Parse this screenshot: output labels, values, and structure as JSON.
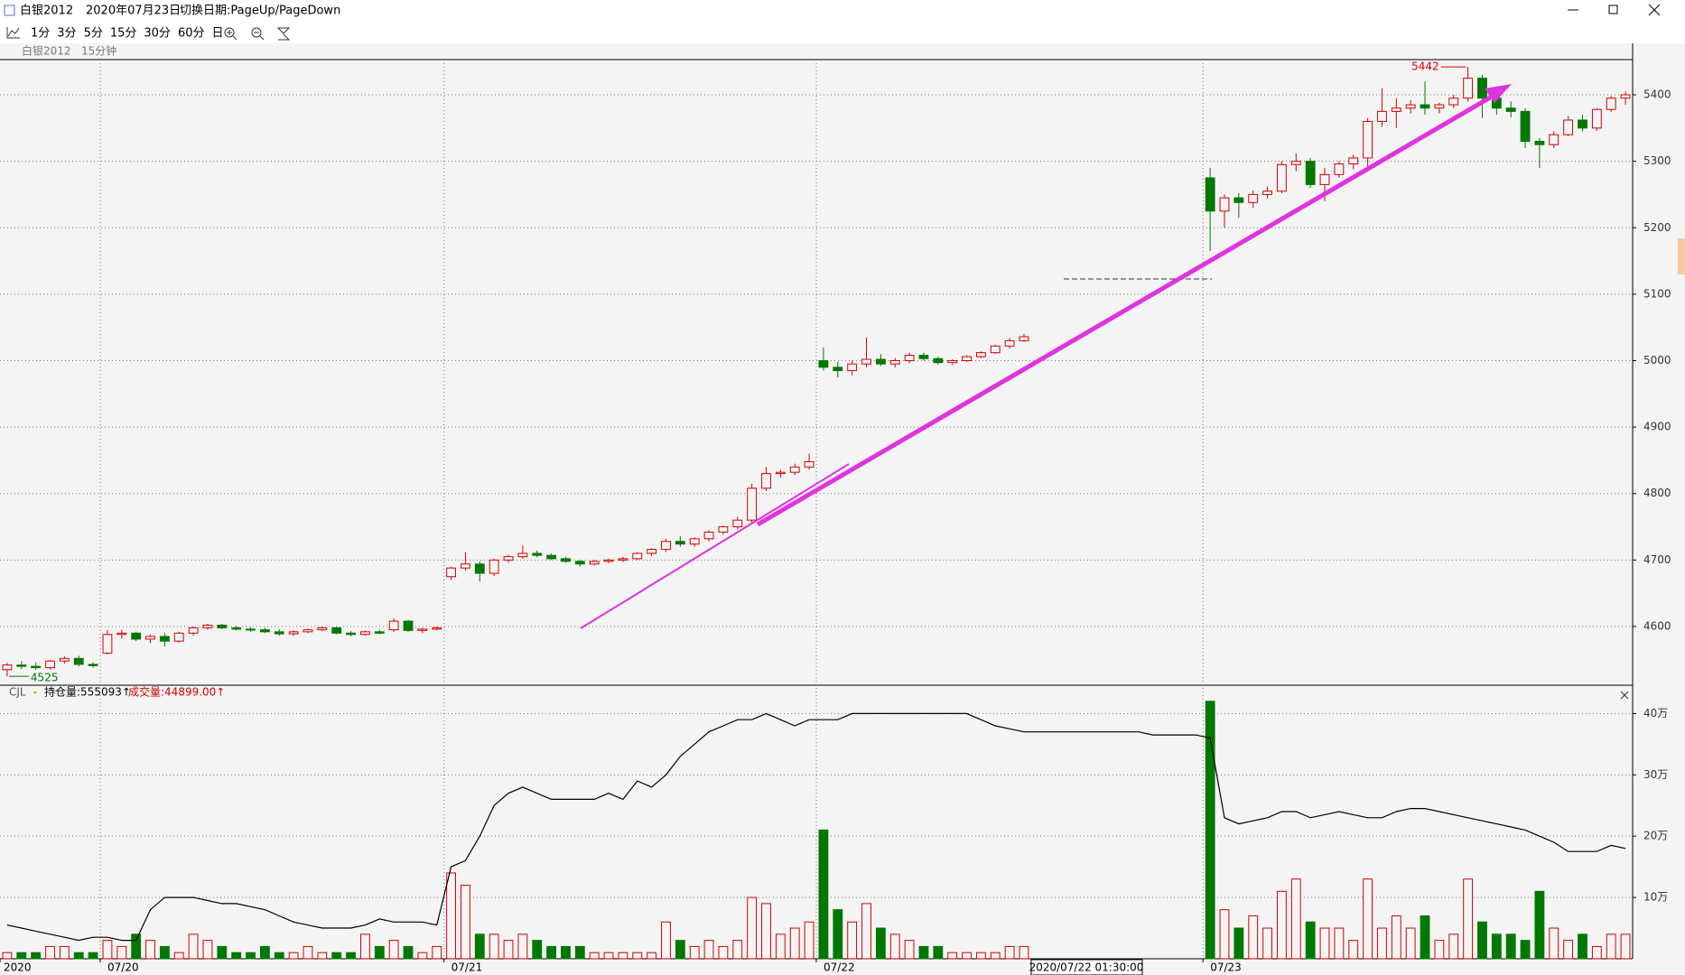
{
  "window": {
    "title": "白银2012",
    "date": "2020年07月23日",
    "hint": "切换日期:PageUp/PageDown"
  },
  "toolbar": {
    "periods": [
      "1分",
      "3分",
      "5分",
      "15分",
      "30分",
      "60分",
      "日"
    ]
  },
  "cursor_label": "2020/07/22 01:30:00",
  "chart_data": [
    {
      "type": "candlestick",
      "symbol": "白银2012",
      "period": "15分钟",
      "up_color": "#d40000",
      "down_color": "#007800",
      "high": 5442,
      "low": 4525,
      "ylim": [
        4513,
        5453
      ],
      "yticks": [
        4600,
        4700,
        4800,
        4900,
        5000,
        5100,
        5200,
        5300,
        5400
      ],
      "grid": true,
      "xticks": [
        {
          "value": 0,
          "label": "2020"
        },
        {
          "value": 7,
          "label": "07/20"
        },
        {
          "value": 31,
          "label": "07/21"
        },
        {
          "value": 57,
          "label": "07/22"
        },
        {
          "value": 84,
          "label": "07/23"
        }
      ],
      "ohlc": [
        [
          4535,
          4545,
          4525,
          4542
        ],
        [
          4542,
          4548,
          4536,
          4540
        ],
        [
          4540,
          4546,
          4535,
          4538
        ],
        [
          4538,
          4550,
          4535,
          4548
        ],
        [
          4548,
          4555,
          4544,
          4552
        ],
        [
          4552,
          4556,
          4540,
          4543
        ],
        [
          4543,
          4546,
          4538,
          4541
        ],
        [
          4560,
          4595,
          4558,
          4588
        ],
        [
          4588,
          4595,
          4582,
          4590
        ],
        [
          4590,
          4592,
          4578,
          4581
        ],
        [
          4581,
          4588,
          4575,
          4585
        ],
        [
          4585,
          4590,
          4570,
          4578
        ],
        [
          4578,
          4592,
          4576,
          4590
        ],
        [
          4590,
          4600,
          4586,
          4598
        ],
        [
          4598,
          4604,
          4595,
          4602
        ],
        [
          4602,
          4604,
          4596,
          4598
        ],
        [
          4598,
          4601,
          4594,
          4596
        ],
        [
          4596,
          4599,
          4592,
          4595
        ],
        [
          4595,
          4598,
          4590,
          4592
        ],
        [
          4592,
          4596,
          4586,
          4589
        ],
        [
          4589,
          4594,
          4586,
          4592
        ],
        [
          4592,
          4597,
          4590,
          4595
        ],
        [
          4595,
          4600,
          4593,
          4598
        ],
        [
          4598,
          4600,
          4588,
          4590
        ],
        [
          4590,
          4593,
          4585,
          4588
        ],
        [
          4588,
          4594,
          4586,
          4592
        ],
        [
          4592,
          4595,
          4588,
          4590
        ],
        [
          4595,
          4612,
          4592,
          4608
        ],
        [
          4608,
          4610,
          4592,
          4594
        ],
        [
          4594,
          4598,
          4590,
          4596
        ],
        [
          4596,
          4600,
          4594,
          4598
        ],
        [
          4675,
          4690,
          4670,
          4688
        ],
        [
          4688,
          4712,
          4684,
          4694
        ],
        [
          4694,
          4698,
          4668,
          4680
        ],
        [
          4680,
          4702,
          4676,
          4700
        ],
        [
          4700,
          4708,
          4696,
          4705
        ],
        [
          4705,
          4722,
          4702,
          4710
        ],
        [
          4710,
          4714,
          4704,
          4707
        ],
        [
          4707,
          4710,
          4700,
          4702
        ],
        [
          4702,
          4705,
          4696,
          4698
        ],
        [
          4698,
          4700,
          4690,
          4694
        ],
        [
          4694,
          4700,
          4692,
          4698
        ],
        [
          4698,
          4702,
          4695,
          4700
        ],
        [
          4700,
          4705,
          4697,
          4702
        ],
        [
          4702,
          4712,
          4700,
          4710
        ],
        [
          4710,
          4718,
          4706,
          4716
        ],
        [
          4716,
          4732,
          4712,
          4728
        ],
        [
          4728,
          4736,
          4720,
          4724
        ],
        [
          4724,
          4734,
          4720,
          4732
        ],
        [
          4732,
          4745,
          4728,
          4742
        ],
        [
          4742,
          4752,
          4738,
          4750
        ],
        [
          4750,
          4765,
          4746,
          4760
        ],
        [
          4760,
          4815,
          4756,
          4808
        ],
        [
          4808,
          4840,
          4804,
          4830
        ],
        [
          4830,
          4836,
          4824,
          4832
        ],
        [
          4832,
          4845,
          4828,
          4840
        ],
        [
          4840,
          4860,
          4836,
          4848
        ],
        [
          5000,
          5020,
          4985,
          4990
        ],
        [
          4990,
          4998,
          4975,
          4985
        ],
        [
          4985,
          5000,
          4978,
          4995
        ],
        [
          4995,
          5035,
          4990,
          5002
        ],
        [
          5002,
          5010,
          4992,
          4995
        ],
        [
          4995,
          5004,
          4990,
          5000
        ],
        [
          5000,
          5012,
          4996,
          5008
        ],
        [
          5008,
          5012,
          5000,
          5003
        ],
        [
          5003,
          5006,
          4994,
          4997
        ],
        [
          4997,
          5002,
          4994,
          5000
        ],
        [
          5000,
          5008,
          4998,
          5006
        ],
        [
          5006,
          5014,
          5004,
          5012
        ],
        [
          5012,
          5024,
          5010,
          5022
        ],
        [
          5022,
          5034,
          5018,
          5030
        ],
        [
          5030,
          5040,
          5028,
          5036
        ],
        null,
        null,
        null,
        null,
        null,
        null,
        null,
        null,
        null,
        null,
        null,
        null,
        [
          5275,
          5290,
          5165,
          5225
        ],
        [
          5225,
          5250,
          5200,
          5245
        ],
        [
          5245,
          5252,
          5215,
          5238
        ],
        [
          5238,
          5256,
          5230,
          5250
        ],
        [
          5250,
          5262,
          5244,
          5255
        ],
        [
          5255,
          5300,
          5252,
          5295
        ],
        [
          5295,
          5312,
          5285,
          5300
        ],
        [
          5300,
          5305,
          5260,
          5265
        ],
        [
          5265,
          5290,
          5240,
          5280
        ],
        [
          5280,
          5300,
          5275,
          5296
        ],
        [
          5296,
          5310,
          5288,
          5305
        ],
        [
          5305,
          5365,
          5290,
          5360
        ],
        [
          5360,
          5410,
          5352,
          5375
        ],
        [
          5375,
          5395,
          5350,
          5380
        ],
        [
          5380,
          5392,
          5372,
          5385
        ],
        [
          5385,
          5420,
          5370,
          5380
        ],
        [
          5380,
          5388,
          5372,
          5385
        ],
        [
          5385,
          5400,
          5380,
          5395
        ],
        [
          5395,
          5442,
          5390,
          5425
        ],
        [
          5425,
          5430,
          5365,
          5395
        ],
        [
          5395,
          5400,
          5370,
          5380
        ],
        [
          5380,
          5390,
          5366,
          5375
        ],
        [
          5375,
          5380,
          5320,
          5330
        ],
        [
          5330,
          5335,
          5290,
          5325
        ],
        [
          5325,
          5345,
          5320,
          5340
        ],
        [
          5340,
          5368,
          5338,
          5362
        ],
        [
          5362,
          5370,
          5345,
          5350
        ],
        [
          5350,
          5380,
          5346,
          5378
        ],
        [
          5378,
          5398,
          5374,
          5395
        ],
        [
          5395,
          5405,
          5385,
          5400
        ]
      ]
    },
    {
      "type": "bar",
      "indicator": "CJL",
      "open_interest_label": "持仓量:555093↑",
      "volume_label": "成交量:44899.00↑",
      "line_color": "#000000",
      "ylim": [
        0,
        43
      ],
      "yticks": [
        {
          "value": 10,
          "label": "10万"
        },
        {
          "value": 20,
          "label": "20万"
        },
        {
          "value": 30,
          "label": "30万"
        },
        {
          "value": 40,
          "label": "40万"
        }
      ],
      "grid": true,
      "volume": [
        1,
        1,
        1,
        2,
        2,
        1,
        1,
        3,
        2,
        4,
        3,
        2,
        1,
        4,
        3,
        2,
        1,
        1,
        2,
        1,
        1,
        2,
        1,
        1,
        1,
        4,
        2,
        3,
        2,
        1,
        2,
        14,
        12,
        4,
        4,
        3,
        4,
        3,
        2,
        2,
        2,
        1,
        1,
        1,
        1,
        1,
        6,
        3,
        2,
        3,
        2,
        3,
        10,
        9,
        4,
        5,
        6,
        21,
        8,
        6,
        9,
        5,
        4,
        3,
        2,
        2,
        1,
        1,
        1,
        1,
        2,
        2,
        null,
        null,
        null,
        null,
        null,
        null,
        null,
        null,
        null,
        null,
        null,
        null,
        42,
        8,
        5,
        7,
        5,
        11,
        13,
        6,
        5,
        5,
        3,
        13,
        5,
        7,
        5,
        7,
        3,
        4,
        13,
        6,
        4,
        4,
        3,
        11,
        5,
        3,
        4,
        2,
        4,
        4
      ],
      "open_interest": [
        5.5,
        5,
        4.5,
        4,
        3.5,
        3,
        3.5,
        3.5,
        3,
        3,
        8,
        10,
        10,
        10,
        9.5,
        9,
        9,
        8.5,
        8,
        7,
        6,
        5.5,
        5,
        5,
        5,
        5.5,
        6.5,
        6,
        6,
        6,
        5.5,
        15,
        16,
        20,
        25,
        27,
        28,
        27,
        26,
        26,
        26,
        26,
        27,
        26,
        29,
        28,
        30,
        33,
        35,
        37,
        38,
        39,
        39,
        40,
        39,
        38,
        39,
        39,
        39,
        40,
        40,
        40,
        40,
        40,
        40,
        40,
        40,
        40,
        39,
        38,
        37.5,
        37,
        37,
        37,
        37,
        37,
        37,
        37,
        37,
        37,
        36.5,
        36.5,
        36.5,
        36.5,
        36,
        23,
        22,
        22.5,
        23,
        24,
        24,
        23,
        23.5,
        24,
        23.5,
        23,
        23,
        24,
        24.5,
        24.5,
        24,
        23.5,
        23,
        22.5,
        22,
        21.5,
        21,
        20,
        19,
        17.5,
        17.5,
        17.5,
        18.5,
        18
      ]
    }
  ]
}
